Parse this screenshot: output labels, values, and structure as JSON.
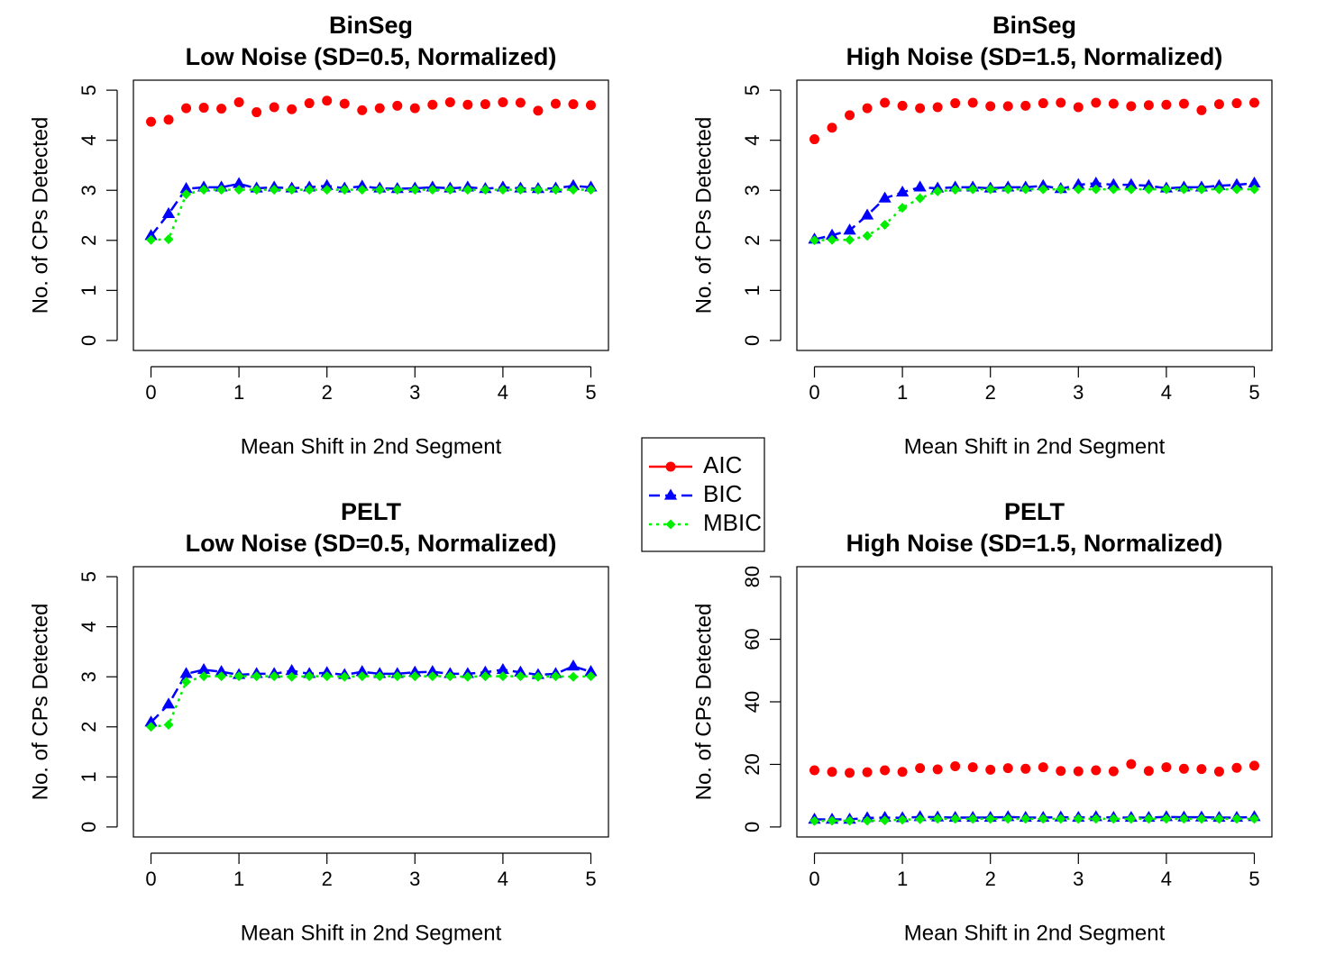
{
  "colors": {
    "AIC": "#ff0000",
    "BIC": "#0000ff",
    "MBIC": "#00ee00"
  },
  "legend": {
    "position": "center",
    "items": [
      {
        "label": "AIC",
        "color": "#ff0000",
        "marker": "circle",
        "line": "solid"
      },
      {
        "label": "BIC",
        "color": "#0000ff",
        "marker": "triangle",
        "line": "dashed"
      },
      {
        "label": "MBIC",
        "color": "#00ee00",
        "marker": "diamond",
        "line": "dotted"
      }
    ]
  },
  "chart_data": [
    {
      "type": "line",
      "title": "BinSeg",
      "subtitle": "Low Noise (SD=0.5, Normalized)",
      "xlabel": "Mean Shift in 2nd Segment",
      "ylabel": "No. of CPs Detected",
      "xlim": [
        0,
        5
      ],
      "ylim": [
        0,
        5
      ],
      "xticks": [
        "0",
        "1",
        "2",
        "3",
        "4",
        "5"
      ],
      "yticks": [
        "0",
        "1",
        "2",
        "3",
        "4",
        "5"
      ],
      "grid": false,
      "x": [
        0,
        0.2,
        0.4,
        0.6,
        0.8,
        1.0,
        1.2,
        1.4,
        1.6,
        1.8,
        2.0,
        2.2,
        2.4,
        2.6,
        2.8,
        3.0,
        3.2,
        3.4,
        3.6,
        3.8,
        4.0,
        4.2,
        4.4,
        4.6,
        4.8,
        5.0
      ],
      "series": [
        {
          "name": "AIC",
          "lines": false,
          "values": [
            4.37,
            4.41,
            4.64,
            4.65,
            4.63,
            4.76,
            4.56,
            4.66,
            4.62,
            4.74,
            4.79,
            4.73,
            4.6,
            4.64,
            4.69,
            4.64,
            4.71,
            4.76,
            4.71,
            4.72,
            4.76,
            4.75,
            4.59,
            4.73,
            4.72,
            4.7
          ]
        },
        {
          "name": "BIC",
          "lines": true,
          "values": [
            2.09,
            2.53,
            3.03,
            3.06,
            3.06,
            3.13,
            3.04,
            3.06,
            3.04,
            3.06,
            3.09,
            3.04,
            3.08,
            3.04,
            3.03,
            3.04,
            3.06,
            3.04,
            3.06,
            3.03,
            3.06,
            3.04,
            3.03,
            3.04,
            3.09,
            3.06
          ]
        },
        {
          "name": "MBIC",
          "lines": true,
          "values": [
            2.01,
            2.02,
            2.92,
            3.01,
            3.01,
            3.01,
            3.01,
            3.01,
            3.01,
            3.01,
            3.01,
            3.01,
            3.01,
            3.01,
            3.01,
            3.01,
            3.01,
            3.01,
            3.01,
            3.01,
            3.01,
            3.01,
            3.01,
            3.01,
            3.01,
            3.01
          ]
        }
      ]
    },
    {
      "type": "line",
      "title": "BinSeg",
      "subtitle": "High Noise (SD=1.5, Normalized)",
      "xlabel": "Mean Shift in 2nd Segment",
      "ylabel": "No. of CPs Detected",
      "xlim": [
        0,
        5
      ],
      "ylim": [
        0,
        5
      ],
      "xticks": [
        "0",
        "1",
        "2",
        "3",
        "4",
        "5"
      ],
      "yticks": [
        "0",
        "1",
        "2",
        "3",
        "4",
        "5"
      ],
      "grid": false,
      "x": [
        0,
        0.2,
        0.4,
        0.6,
        0.8,
        1.0,
        1.2,
        1.4,
        1.6,
        1.8,
        2.0,
        2.2,
        2.4,
        2.6,
        2.8,
        3.0,
        3.2,
        3.4,
        3.6,
        3.8,
        4.0,
        4.2,
        4.4,
        4.6,
        4.8,
        5.0
      ],
      "series": [
        {
          "name": "AIC",
          "lines": false,
          "values": [
            4.02,
            4.25,
            4.5,
            4.64,
            4.75,
            4.69,
            4.64,
            4.66,
            4.74,
            4.75,
            4.68,
            4.68,
            4.69,
            4.74,
            4.75,
            4.66,
            4.75,
            4.73,
            4.68,
            4.7,
            4.71,
            4.73,
            4.6,
            4.72,
            4.74,
            4.75
          ]
        },
        {
          "name": "BIC",
          "lines": true,
          "values": [
            2.02,
            2.1,
            2.2,
            2.5,
            2.84,
            2.96,
            3.06,
            3.04,
            3.06,
            3.06,
            3.04,
            3.06,
            3.06,
            3.09,
            3.03,
            3.11,
            3.14,
            3.11,
            3.11,
            3.09,
            3.04,
            3.06,
            3.06,
            3.09,
            3.11,
            3.14
          ]
        },
        {
          "name": "MBIC",
          "lines": true,
          "values": [
            2.0,
            2.01,
            2.01,
            2.09,
            2.31,
            2.65,
            2.84,
            2.98,
            3.01,
            3.02,
            3.02,
            3.02,
            3.02,
            3.02,
            3.02,
            3.02,
            3.02,
            3.02,
            3.02,
            3.02,
            3.02,
            3.02,
            3.02,
            3.02,
            3.02,
            3.02
          ]
        }
      ]
    },
    {
      "type": "line",
      "title": "PELT",
      "subtitle": "Low Noise (SD=0.5, Normalized)",
      "xlabel": "Mean Shift in 2nd Segment",
      "ylabel": "No. of CPs Detected",
      "xlim": [
        0,
        5
      ],
      "ylim": [
        0,
        5
      ],
      "xticks": [
        "0",
        "1",
        "2",
        "3",
        "4",
        "5"
      ],
      "yticks": [
        "0",
        "1",
        "2",
        "3",
        "4",
        "5"
      ],
      "grid": false,
      "x": [
        0,
        0.2,
        0.4,
        0.6,
        0.8,
        1.0,
        1.2,
        1.4,
        1.6,
        1.8,
        2.0,
        2.2,
        2.4,
        2.6,
        2.8,
        3.0,
        3.2,
        3.4,
        3.6,
        3.8,
        4.0,
        4.2,
        4.4,
        4.6,
        4.8,
        5.0
      ],
      "series": [
        {
          "name": "BIC",
          "lines": true,
          "values": [
            2.09,
            2.45,
            3.06,
            3.14,
            3.1,
            3.04,
            3.06,
            3.06,
            3.12,
            3.06,
            3.08,
            3.04,
            3.1,
            3.06,
            3.06,
            3.09,
            3.1,
            3.06,
            3.06,
            3.09,
            3.14,
            3.09,
            3.04,
            3.06,
            3.21,
            3.1
          ]
        },
        {
          "name": "MBIC",
          "lines": true,
          "values": [
            2.0,
            2.04,
            2.9,
            3.01,
            3.01,
            3.01,
            3.01,
            3.01,
            3.0,
            3.01,
            3.01,
            3.0,
            3.01,
            3.01,
            3.01,
            3.01,
            3.01,
            3.01,
            3.0,
            3.01,
            3.01,
            3.01,
            3.0,
            3.01,
            3.0,
            3.01
          ]
        }
      ]
    },
    {
      "type": "line",
      "title": "PELT",
      "subtitle": "High Noise (SD=1.5, Normalized)",
      "xlabel": "Mean Shift in 2nd Segment",
      "ylabel": "No. of CPs Detected",
      "xlim": [
        0,
        5
      ],
      "ylim": [
        0,
        80
      ],
      "xticks": [
        "0",
        "1",
        "2",
        "3",
        "4",
        "5"
      ],
      "yticks": [
        "0",
        "20",
        "40",
        "60",
        "80"
      ],
      "grid": false,
      "x": [
        0,
        0.2,
        0.4,
        0.6,
        0.8,
        1.0,
        1.2,
        1.4,
        1.6,
        1.8,
        2.0,
        2.2,
        2.4,
        2.6,
        2.8,
        3.0,
        3.2,
        3.4,
        3.6,
        3.8,
        4.0,
        4.2,
        4.4,
        4.6,
        4.8,
        5.0
      ],
      "series": [
        {
          "name": "AIC",
          "lines": false,
          "values": [
            18.1,
            17.6,
            17.3,
            17.5,
            18.1,
            17.6,
            18.8,
            18.4,
            19.4,
            19.1,
            18.3,
            18.8,
            18.6,
            19.1,
            17.9,
            17.8,
            18.1,
            17.8,
            20.1,
            17.9,
            19.1,
            18.6,
            18.5,
            17.7,
            18.9,
            19.6
          ]
        },
        {
          "name": "BIC",
          "lines": true,
          "values": [
            2.4,
            2.4,
            2.4,
            2.9,
            3.0,
            2.9,
            3.2,
            3.1,
            3.0,
            3.0,
            3.0,
            3.2,
            3.0,
            3.0,
            3.1,
            3.0,
            3.2,
            3.0,
            3.0,
            3.0,
            3.2,
            3.1,
            3.1,
            3.0,
            3.0,
            3.2
          ]
        },
        {
          "name": "MBIC",
          "lines": true,
          "values": [
            1.9,
            2.0,
            2.0,
            2.0,
            2.1,
            2.3,
            2.5,
            2.6,
            2.6,
            2.6,
            2.6,
            2.6,
            2.6,
            2.6,
            2.6,
            2.6,
            2.6,
            2.6,
            2.6,
            2.6,
            2.6,
            2.6,
            2.6,
            2.6,
            2.6,
            2.6
          ]
        }
      ]
    }
  ]
}
